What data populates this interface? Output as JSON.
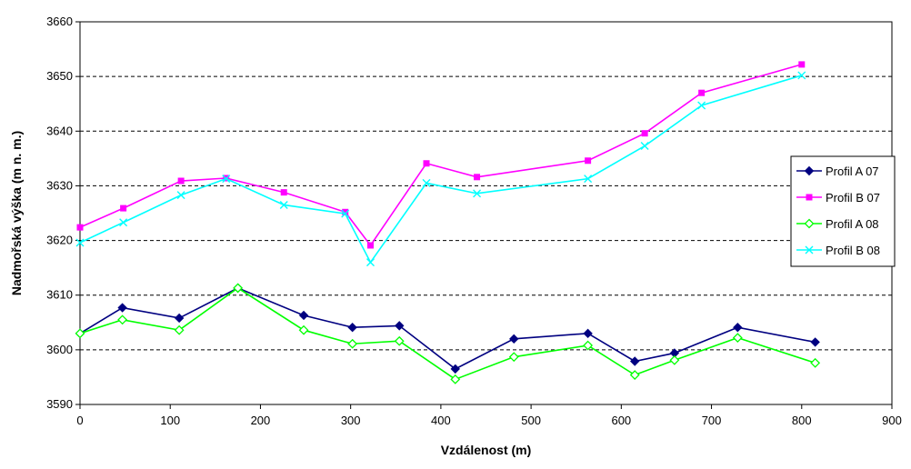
{
  "chart_data": {
    "type": "line",
    "xlabel": "Vzdálenost (m)",
    "ylabel": "Nadmořská výška (m n. m.)",
    "xlim": [
      0,
      900
    ],
    "ylim": [
      3590,
      3660
    ],
    "xticks": [
      "0",
      "100",
      "200",
      "300",
      "400",
      "500",
      "600",
      "700",
      "800",
      "900"
    ],
    "yticks": [
      "3590",
      "3600",
      "3610",
      "3620",
      "3630",
      "3640",
      "3650",
      "3660"
    ],
    "grid": "horizontal-dashed",
    "legend_position": "right",
    "series": [
      {
        "name": "Profil A 07",
        "color": "#000080",
        "marker": "diamond-filled",
        "points": [
          [
            0,
            3603.0
          ],
          [
            47,
            3607.7
          ],
          [
            110,
            3605.8
          ],
          [
            175,
            3611.3
          ],
          [
            248,
            3606.3
          ],
          [
            302,
            3604.1
          ],
          [
            354,
            3604.4
          ],
          [
            416,
            3596.5
          ],
          [
            481,
            3602.0
          ],
          [
            563,
            3603.0
          ],
          [
            615,
            3597.9
          ],
          [
            659,
            3599.4
          ],
          [
            729,
            3604.1
          ],
          [
            815,
            3601.4
          ]
        ]
      },
      {
        "name": "Profil B 07",
        "color": "#FF00FF",
        "marker": "square",
        "points": [
          [
            0,
            3622.4
          ],
          [
            48,
            3625.9
          ],
          [
            112,
            3630.9
          ],
          [
            162,
            3631.4
          ],
          [
            226,
            3628.8
          ],
          [
            294,
            3625.2
          ],
          [
            322,
            3619.1
          ],
          [
            384,
            3634.1
          ],
          [
            440,
            3631.6
          ],
          [
            563,
            3634.6
          ],
          [
            626,
            3639.6
          ],
          [
            689,
            3647.0
          ],
          [
            800,
            3652.2
          ]
        ]
      },
      {
        "name": "Profil A 08",
        "color": "#00FF00",
        "marker": "diamond-open",
        "points": [
          [
            0,
            3603.0
          ],
          [
            47,
            3605.5
          ],
          [
            110,
            3603.6
          ],
          [
            175,
            3611.3
          ],
          [
            248,
            3603.6
          ],
          [
            302,
            3601.1
          ],
          [
            354,
            3601.6
          ],
          [
            416,
            3594.6
          ],
          [
            481,
            3598.7
          ],
          [
            563,
            3600.8
          ],
          [
            615,
            3595.4
          ],
          [
            659,
            3598.1
          ],
          [
            729,
            3602.2
          ],
          [
            815,
            3597.6
          ]
        ]
      },
      {
        "name": "Profil B 08",
        "color": "#00FFFF",
        "marker": "x",
        "points": [
          [
            0,
            3619.6
          ],
          [
            48,
            3623.3
          ],
          [
            112,
            3628.3
          ],
          [
            162,
            3631.3
          ],
          [
            226,
            3626.5
          ],
          [
            294,
            3624.9
          ],
          [
            322,
            3616.0
          ],
          [
            384,
            3630.5
          ],
          [
            440,
            3628.6
          ],
          [
            563,
            3631.3
          ],
          [
            626,
            3637.3
          ],
          [
            689,
            3644.7
          ],
          [
            800,
            3650.2
          ]
        ]
      }
    ]
  }
}
